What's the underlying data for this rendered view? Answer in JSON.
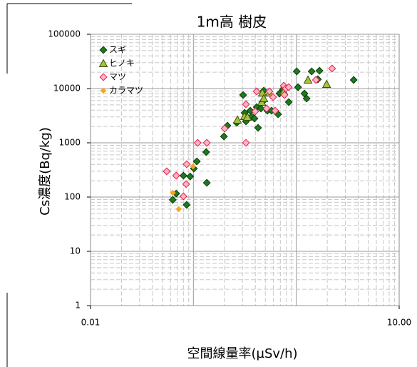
{
  "chart_data": {
    "type": "scatter",
    "title": "1m高 樹皮",
    "xlabel": "空間線量率(µSv/h)",
    "ylabel": "Cs濃度(Bq/kg)",
    "log_x": true,
    "log_y": true,
    "grid": true,
    "legend": "upper left",
    "xlim": [
      0.01,
      10
    ],
    "ylim": [
      1,
      100000
    ],
    "xticks": [
      0.01,
      {
        "value": 10,
        "label": "10.00"
      }
    ],
    "yticks": [
      1,
      10,
      100,
      1000,
      10000,
      100000
    ],
    "series": [
      {
        "name": "スギ",
        "marker": "diamond",
        "color": "#1e7a1e",
        "edgecolor": "#0b3d0b",
        "x": [
          0.063,
          0.068,
          0.08,
          0.093,
          0.086,
          0.101,
          0.108,
          0.133,
          0.135,
          0.198,
          0.214,
          0.264,
          0.304,
          0.314,
          0.324,
          0.357,
          0.368,
          0.392,
          0.412,
          0.425,
          0.453,
          0.468,
          0.483,
          0.523,
          0.575,
          0.665,
          0.686,
          0.743,
          0.845,
          1.01,
          1.04,
          1.2,
          1.26,
          1.41,
          1.62,
          1.68,
          3.61
        ],
        "values": [
          89,
          116,
          248,
          240,
          72,
          336,
          455,
          675,
          183,
          1310,
          2070,
          2340,
          7620,
          3570,
          2480,
          3910,
          3070,
          2800,
          4550,
          1890,
          4280,
          5620,
          9140,
          3910,
          3910,
          3360,
          8090,
          9700,
          5620,
          20700,
          10600,
          8090,
          6540,
          20700,
          14800,
          21300,
          14400
        ]
      },
      {
        "name": "ヒノキ",
        "marker": "triangle",
        "color": "#a3c43a",
        "edgecolor": "#3d4d0b",
        "x": [
          0.268,
          0.314,
          0.335,
          0.461,
          0.468,
          0.483,
          0.548,
          0.755,
          1.3,
          1.97
        ],
        "values": [
          2640,
          3070,
          2980,
          5620,
          8340,
          6540,
          8340,
          8850,
          14400,
          12000
        ]
      },
      {
        "name": "マツ",
        "marker": "diamond",
        "color": "#ffb3c6",
        "edgecolor": "#e0204a",
        "x": [
          0.055,
          0.068,
          0.085,
          0.086,
          0.11,
          0.135,
          0.201,
          0.324,
          0.324,
          0.399,
          0.412,
          0.515,
          0.548,
          0.594,
          0.623,
          0.755,
          0.767,
          0.792,
          0.845,
          1.55,
          2.23,
          0.08
        ],
        "values": [
          298,
          248,
          173,
          403,
          1000,
          1000,
          1830,
          1000,
          5140,
          3790,
          8850,
          4280,
          8850,
          6950,
          3910,
          11300,
          7620,
          10000,
          10600,
          14400,
          23400,
          103
        ]
      },
      {
        "name": "カラマツ",
        "marker": "small-diamond",
        "color": "#f5a623",
        "edgecolor": "#f5a623",
        "x": [
          0.063,
          0.072,
          0.099
        ],
        "values": [
          120,
          60,
          368
        ]
      }
    ]
  }
}
